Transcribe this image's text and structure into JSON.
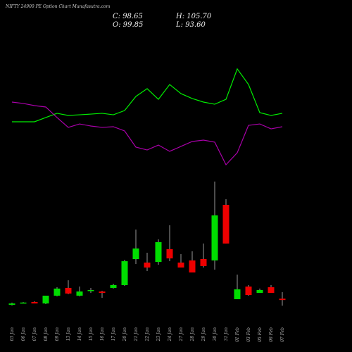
{
  "header": {
    "title": "NIFTY 24900 PE Option Chart Munafasutra.com",
    "close": "C: 98.65",
    "high": "H: 105.70",
    "open": "O: 99.85",
    "low": "L: 93.60"
  },
  "chart_data": [
    {
      "type": "candlestick",
      "categories": [
        "03 Jan",
        "06 Jan",
        "07 Jan",
        "08 Jan",
        "09 Jan",
        "13 Jan",
        "14 Jan",
        "15 Jan",
        "16 Jan",
        "17 Jan",
        "20 Jan",
        "21 Jan",
        "22 Jan",
        "23 Jan",
        "24 Jan",
        "27 Jan",
        "28 Jan",
        "29 Jan",
        "30 Jan",
        "31 Jan",
        "01 Feb",
        "03 Feb",
        "05 Feb",
        "06 Feb",
        "07 Feb"
      ],
      "open": [
        94.4,
        96.2,
        96.9,
        95.6,
        102.5,
        109.4,
        102.5,
        107.2,
        106.2,
        109.4,
        111.9,
        135,
        131.9,
        132.5,
        143.8,
        131.9,
        133.8,
        135,
        133.8,
        183.1,
        99.4,
        110.6,
        105,
        110,
        99.85
      ],
      "high": [
        96.3,
        96.8,
        97.5,
        102.5,
        110,
        116.2,
        110.6,
        109.4,
        106.9,
        113.1,
        134.4,
        161.2,
        140.6,
        152.5,
        165,
        139.4,
        141.9,
        148.8,
        203.8,
        188.1,
        121.2,
        111.9,
        108.8,
        111.9,
        105.7
      ],
      "low": [
        93.8,
        96,
        95.6,
        95,
        101.9,
        103.8,
        101.9,
        105,
        100.6,
        108.8,
        111.2,
        130.6,
        124.4,
        130,
        133.1,
        127.5,
        123.1,
        127.5,
        125.6,
        148.8,
        99.4,
        102.5,
        105,
        105,
        93.6
      ],
      "close": [
        95.6,
        96.4,
        95.6,
        102.5,
        108.8,
        104.4,
        106.2,
        107.5,
        105,
        111.9,
        133.1,
        144.4,
        127.5,
        150,
        135.6,
        127.5,
        123.1,
        128.8,
        173.8,
        148.8,
        108.1,
        103.1,
        107.5,
        105,
        98.65
      ],
      "ylim": [
        90,
        208.75
      ],
      "up_color": "#00dd00",
      "down_color": "#ee0000",
      "wick_color": "#999999"
    },
    {
      "type": "line",
      "ylim": [
        0,
        100
      ],
      "series": [
        {
          "color": "#00ee00",
          "values": [
            44.3,
            44.3,
            44.3,
            48.6,
            52.9,
            50.7,
            51.4,
            52.1,
            52.9,
            51.4,
            55.7,
            70,
            77.9,
            67.1,
            82.1,
            72.9,
            67.9,
            64.3,
            62.1,
            67.1,
            97.9,
            82.1,
            53.6,
            50.7,
            52.9
          ]
        },
        {
          "color": "#aa00aa",
          "values": [
            64.3,
            62.9,
            60.7,
            59.3,
            48.6,
            38.6,
            42.1,
            40,
            38.6,
            39.3,
            35,
            18.6,
            15.7,
            20.7,
            14.3,
            19.3,
            24.3,
            25.7,
            23.6,
            0.7,
            12.9,
            40.7,
            42.1,
            37.1,
            39.3
          ]
        }
      ]
    }
  ]
}
